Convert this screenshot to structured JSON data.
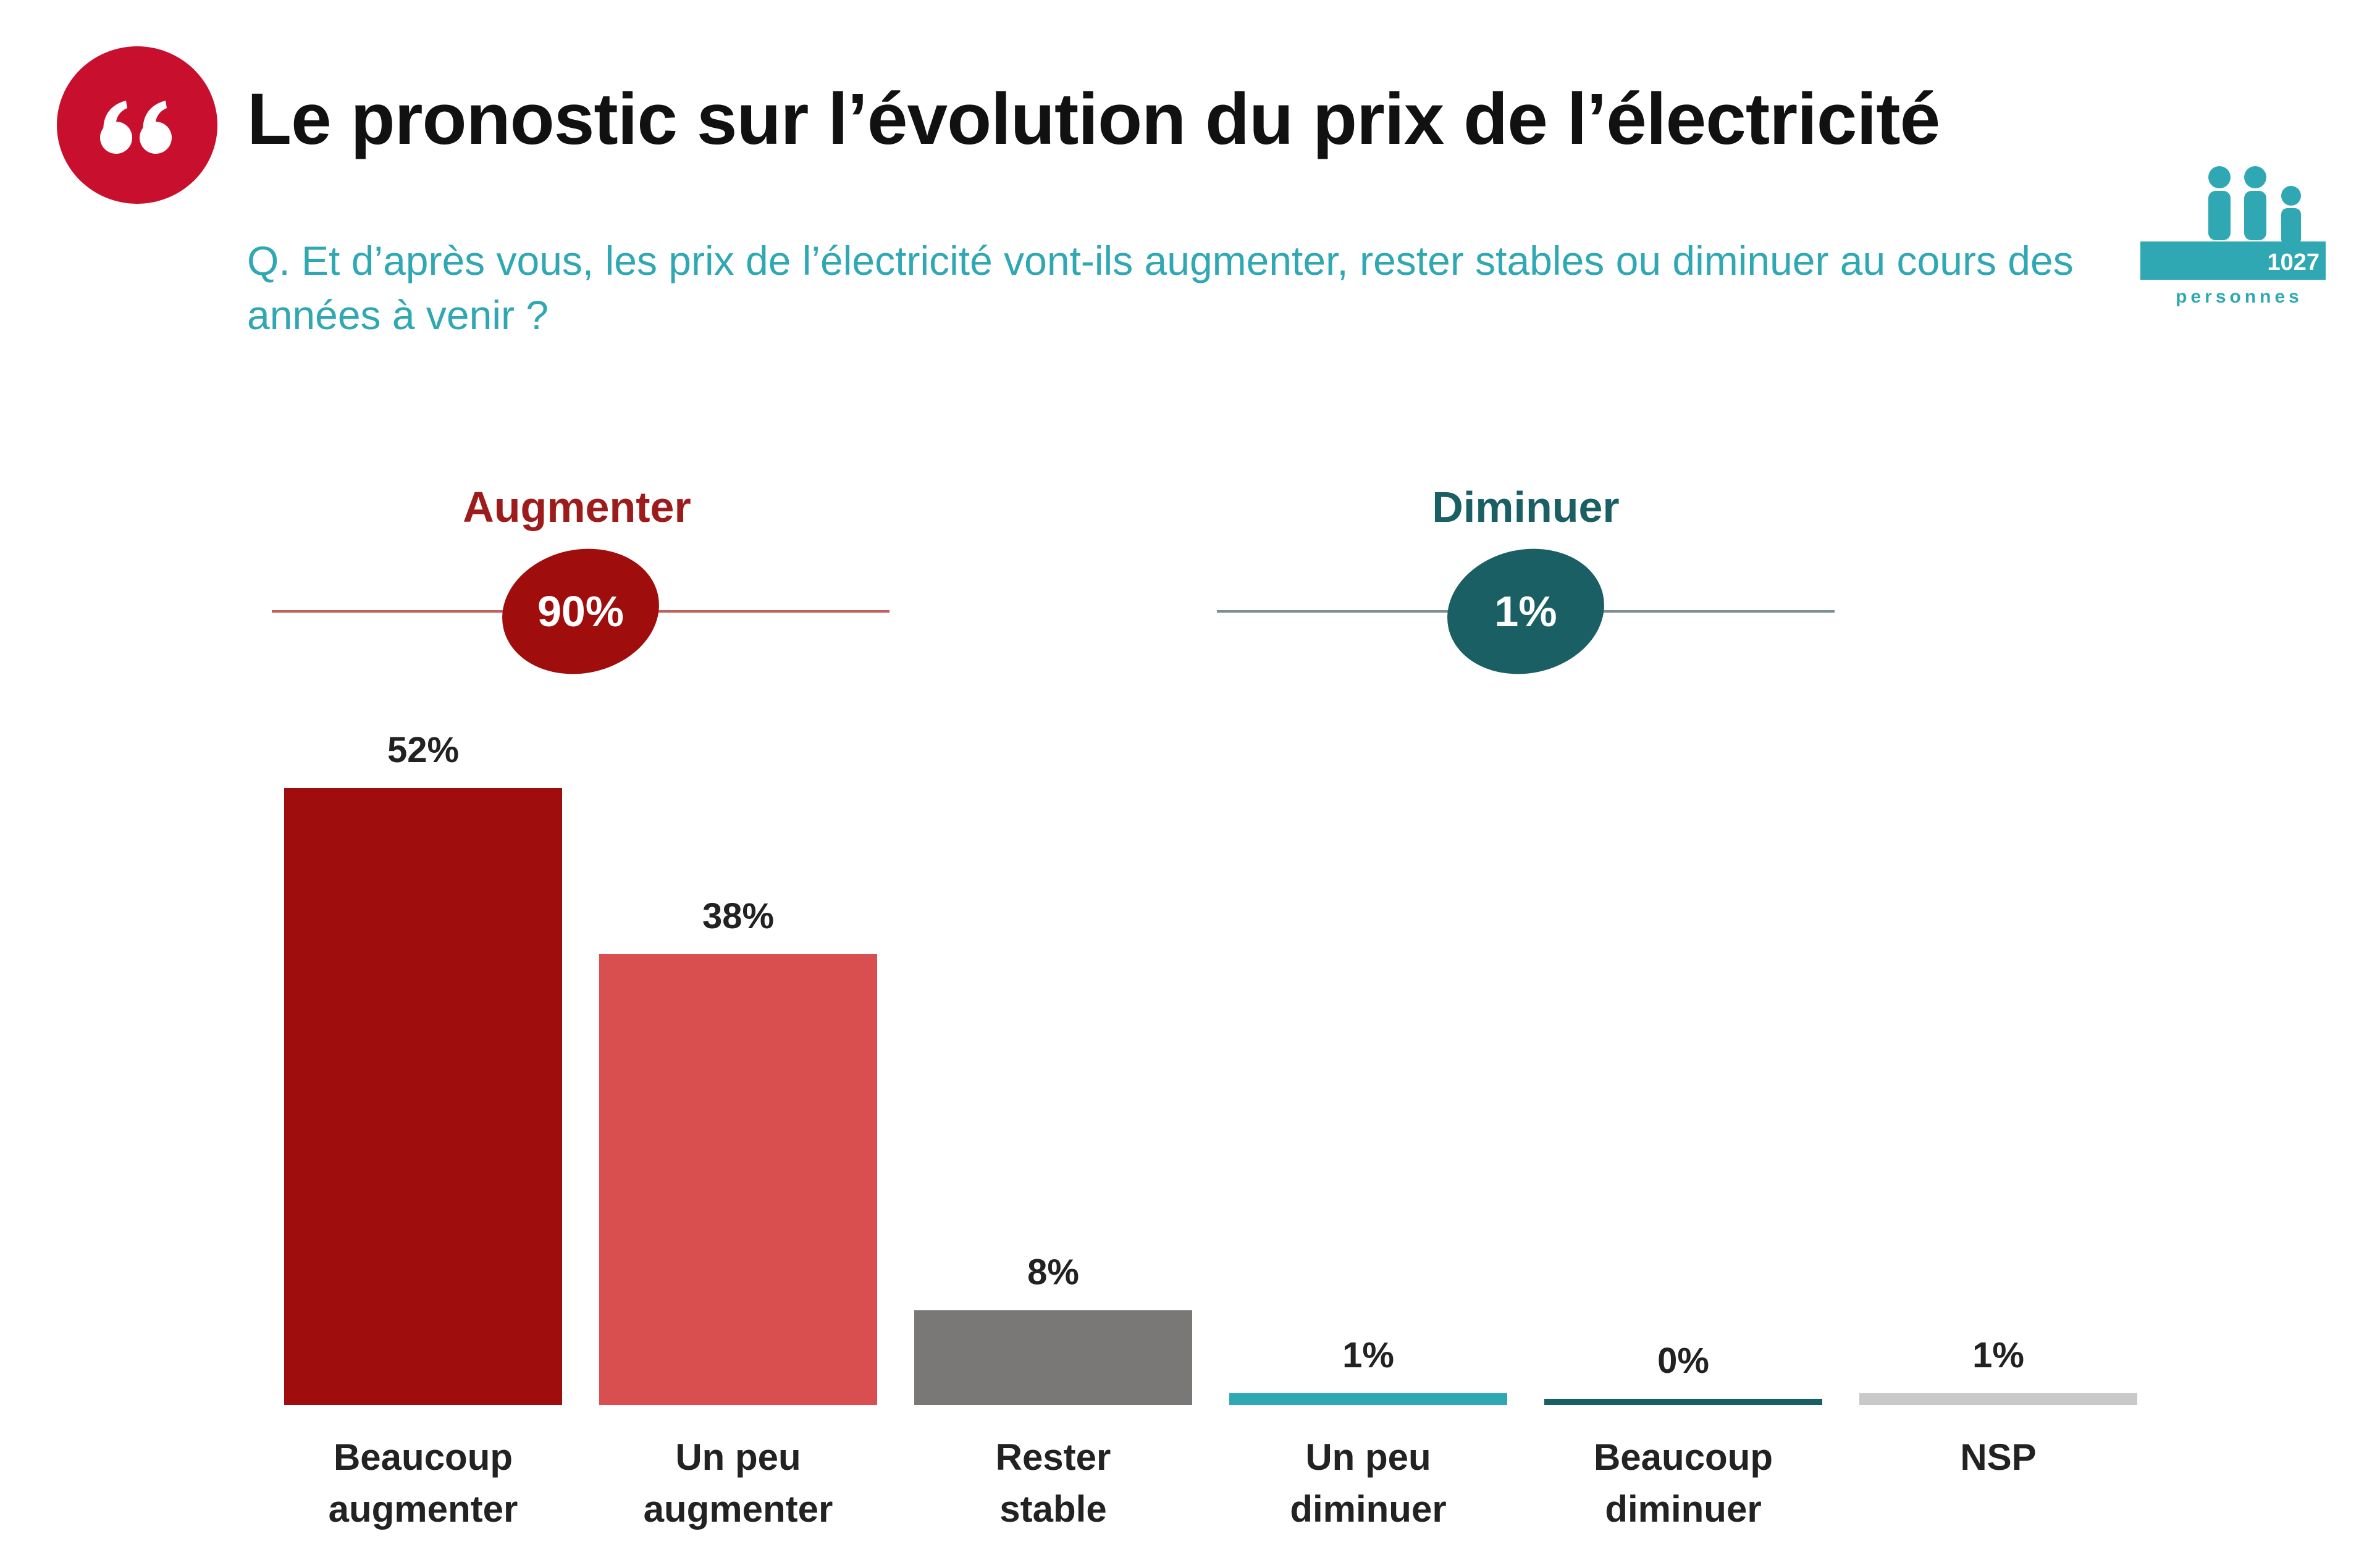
{
  "header": {
    "title": "Le pronostic sur l’évolution du prix de l’électricité",
    "question": "Q. Et d’après vous, les prix de l’électricité vont-ils augmenter, rester stables ou diminuer au cours des années à venir ?"
  },
  "sample": {
    "count": "1027",
    "label": "personnes"
  },
  "colors": {
    "quote_badge": "#c8102e",
    "augmenter_dark": "#a00d0d",
    "augmenter_light": "#d94f4f",
    "stable": "#7a7777",
    "diminuer": "#1a5f63",
    "diminuer_accent": "#2fa8b3",
    "nsp": "#c9c9c9",
    "question_text": "#2fa8b3",
    "line_red": "#c26060",
    "line_teal": "#7a8f90"
  },
  "chart_data": {
    "type": "bar",
    "categories": [
      [
        "Beaucoup",
        "augmenter"
      ],
      [
        "Un peu",
        "augmenter"
      ],
      [
        "Rester",
        "stable"
      ],
      [
        "Un peu",
        "diminuer"
      ],
      [
        "Beaucoup",
        "diminuer"
      ],
      [
        "NSP"
      ]
    ],
    "values": [
      52,
      38,
      8,
      1,
      0,
      1
    ],
    "value_labels": [
      "52%",
      "38%",
      "8%",
      "1%",
      "0%",
      "1%"
    ],
    "bar_colors": [
      "#a00d0d",
      "#d94f4f",
      "#7a7777",
      "#2fa8b3",
      "#1a5f63",
      "#c9c9c9"
    ],
    "ylim": [
      0,
      52
    ],
    "grid": false,
    "groups": [
      {
        "label": "Augmenter",
        "total": "90%",
        "color": "#a00d0d",
        "label_color": "#9e1b1b",
        "line_color": "#c26060",
        "span": [
          0,
          1
        ]
      },
      {
        "label": "Diminuer",
        "total": "1%",
        "color": "#1a5f63",
        "label_color": "#1a5f63",
        "line_color": "#7a8f90",
        "span": [
          3,
          4
        ]
      }
    ]
  }
}
